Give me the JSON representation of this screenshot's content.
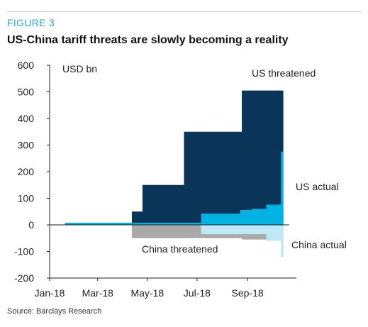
{
  "figure_label": "FIGURE 3",
  "title": "US-China tariff threats are slowly becoming a reality",
  "source": "Source: Barclays Research",
  "chart_data": {
    "type": "area",
    "unit_label": "USD bn",
    "ylim": [
      -200,
      600
    ],
    "yticks": [
      600,
      500,
      400,
      300,
      200,
      100,
      0,
      -100,
      -200
    ],
    "ytick_labels": [
      "600",
      "500",
      "400",
      "300",
      "200",
      "100",
      "0",
      "-100",
      "-200"
    ],
    "xticks": [
      "2018-01-01",
      "2018-03-01",
      "2018-05-01",
      "2018-07-01",
      "2018-09-01"
    ],
    "xtick_labels": [
      "Jan-18",
      "Mar-18",
      "May-18",
      "Jul-18",
      "Sep-18"
    ],
    "xlim": [
      "2018-01-01",
      "2018-10-31"
    ],
    "series": [
      {
        "name": "US threatened",
        "color": "#0a3458",
        "points": [
          [
            "2018-01-20",
            8
          ],
          [
            "2018-04-12",
            8
          ],
          [
            "2018-04-12",
            50
          ],
          [
            "2018-04-25",
            50
          ],
          [
            "2018-04-25",
            150
          ],
          [
            "2018-06-15",
            150
          ],
          [
            "2018-06-15",
            350
          ],
          [
            "2018-08-25",
            350
          ],
          [
            "2018-08-25",
            505
          ],
          [
            "2018-10-15",
            505
          ]
        ]
      },
      {
        "name": "US actual",
        "color": "#00b3e3",
        "points": [
          [
            "2018-01-20",
            8
          ],
          [
            "2018-07-06",
            8
          ],
          [
            "2018-07-06",
            42
          ],
          [
            "2018-08-23",
            42
          ],
          [
            "2018-08-23",
            56
          ],
          [
            "2018-09-06",
            56
          ],
          [
            "2018-09-06",
            60
          ],
          [
            "2018-09-24",
            60
          ],
          [
            "2018-09-24",
            76
          ],
          [
            "2018-10-12",
            76
          ],
          [
            "2018-10-12",
            275
          ],
          [
            "2018-10-15",
            275
          ]
        ]
      },
      {
        "name": "China threatened",
        "color": "#a9a9a9",
        "points": [
          [
            "2018-04-12",
            0
          ],
          [
            "2018-04-12",
            -50
          ],
          [
            "2018-08-25",
            -50
          ],
          [
            "2018-08-25",
            -55
          ],
          [
            "2018-09-24",
            -55
          ],
          [
            "2018-09-24",
            -60
          ],
          [
            "2018-10-15",
            -60
          ]
        ]
      },
      {
        "name": "China actual",
        "color": "#bfe8f7",
        "points": [
          [
            "2018-07-06",
            0
          ],
          [
            "2018-07-06",
            -35
          ],
          [
            "2018-09-24",
            -35
          ],
          [
            "2018-09-24",
            -60
          ],
          [
            "2018-10-12",
            -60
          ],
          [
            "2018-10-12",
            -120
          ],
          [
            "2018-10-15",
            -120
          ]
        ]
      }
    ],
    "annotations": [
      {
        "text": "US threatened",
        "series": "US threatened"
      },
      {
        "text": "US actual",
        "series": "US actual"
      },
      {
        "text": "China threatened",
        "series": "China threatened"
      },
      {
        "text": "China actual",
        "series": "China actual"
      }
    ]
  }
}
